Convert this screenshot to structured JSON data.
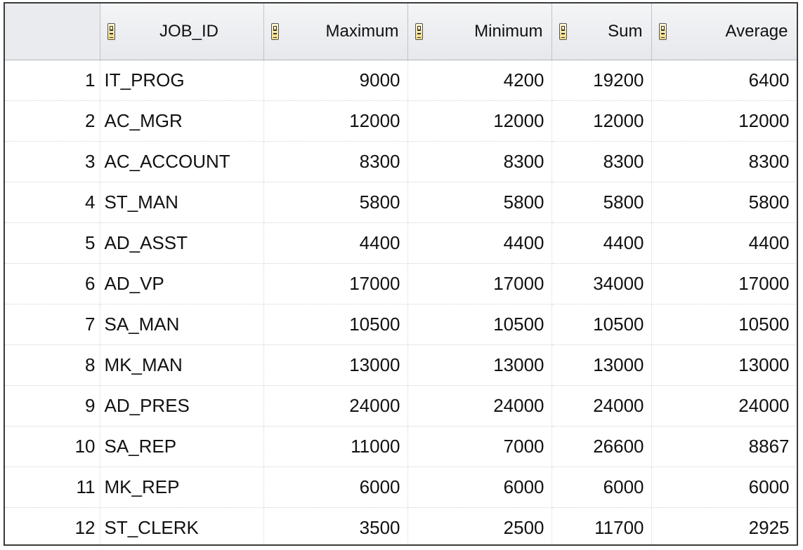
{
  "columns": {
    "job_id": "JOB_ID",
    "maximum": "Maximum",
    "minimum": "Minimum",
    "sum": "Sum",
    "average": "Average"
  },
  "sort_icon": "sort-az-icon",
  "rows": [
    {
      "n": "1",
      "job_id": "IT_PROG",
      "max": "9000",
      "min": "4200",
      "sum": "19200",
      "avg": "6400"
    },
    {
      "n": "2",
      "job_id": "AC_MGR",
      "max": "12000",
      "min": "12000",
      "sum": "12000",
      "avg": "12000"
    },
    {
      "n": "3",
      "job_id": "AC_ACCOUNT",
      "max": "8300",
      "min": "8300",
      "sum": "8300",
      "avg": "8300"
    },
    {
      "n": "4",
      "job_id": "ST_MAN",
      "max": "5800",
      "min": "5800",
      "sum": "5800",
      "avg": "5800"
    },
    {
      "n": "5",
      "job_id": "AD_ASST",
      "max": "4400",
      "min": "4400",
      "sum": "4400",
      "avg": "4400"
    },
    {
      "n": "6",
      "job_id": "AD_VP",
      "max": "17000",
      "min": "17000",
      "sum": "34000",
      "avg": "17000"
    },
    {
      "n": "7",
      "job_id": "SA_MAN",
      "max": "10500",
      "min": "10500",
      "sum": "10500",
      "avg": "10500"
    },
    {
      "n": "8",
      "job_id": "MK_MAN",
      "max": "13000",
      "min": "13000",
      "sum": "13000",
      "avg": "13000"
    },
    {
      "n": "9",
      "job_id": "AD_PRES",
      "max": "24000",
      "min": "24000",
      "sum": "24000",
      "avg": "24000"
    },
    {
      "n": "10",
      "job_id": "SA_REP",
      "max": "11000",
      "min": "7000",
      "sum": "26600",
      "avg": "8867"
    },
    {
      "n": "11",
      "job_id": "MK_REP",
      "max": "6000",
      "min": "6000",
      "sum": "6000",
      "avg": "6000"
    },
    {
      "n": "12",
      "job_id": "ST_CLERK",
      "max": "3500",
      "min": "2500",
      "sum": "11700",
      "avg": "2925"
    }
  ]
}
